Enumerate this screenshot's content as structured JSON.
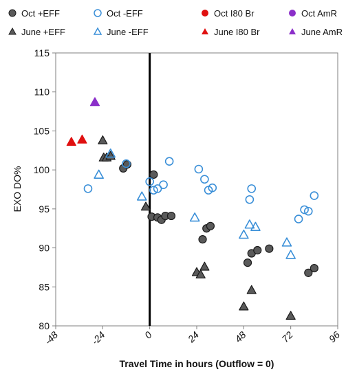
{
  "chart_data": {
    "type": "scatter",
    "title": "",
    "xlabel": "Travel Time in hours (Outflow = 0)",
    "ylabel": "EXO DO%",
    "xlim": [
      -48,
      96
    ],
    "ylim": [
      80,
      115
    ],
    "xticks": [
      -48,
      -24,
      0,
      24,
      48,
      72,
      96
    ],
    "yticks": [
      80,
      85,
      90,
      95,
      100,
      105,
      110,
      115
    ],
    "xtick_labels": [
      "-48",
      "-24",
      "0",
      "24",
      "48",
      "72",
      "96"
    ],
    "ytick_labels": [
      "80",
      "85",
      "90",
      "95",
      "100",
      "105",
      "110",
      "115"
    ],
    "grid": false,
    "vertical_reference_line_x": 0,
    "legend": {
      "placement": "top",
      "entries": [
        {
          "label": "Oct +EFF",
          "series": 0
        },
        {
          "label": "Oct -EFF",
          "series": 1
        },
        {
          "label": "Oct I80 Br",
          "series": 2
        },
        {
          "label": "Oct AmR",
          "series": 3
        },
        {
          "label": "June +EFF",
          "series": 4
        },
        {
          "label": "June -EFF",
          "series": 5
        },
        {
          "label": "June I80 Br",
          "series": 6
        },
        {
          "label": "June AmR",
          "series": 7
        }
      ]
    },
    "series": [
      {
        "name": "Oct +EFF",
        "marker": "circle",
        "fill": "#5a5a5a",
        "stroke": "#1a1a1a",
        "points": [
          [
            -13.5,
            100.2
          ],
          [
            -11.5,
            100.7
          ],
          [
            2,
            99.4
          ],
          [
            1,
            94.0
          ],
          [
            4,
            93.9
          ],
          [
            6,
            93.6
          ],
          [
            8,
            94.1
          ],
          [
            11,
            94.1
          ],
          [
            27,
            91.1
          ],
          [
            29,
            92.5
          ],
          [
            31,
            92.8
          ],
          [
            50,
            88.1
          ],
          [
            52,
            89.3
          ],
          [
            55,
            89.7
          ],
          [
            61,
            89.9
          ],
          [
            81,
            86.8
          ],
          [
            84,
            87.4
          ]
        ]
      },
      {
        "name": "Oct -EFF",
        "marker": "circle-open",
        "fill": "none",
        "stroke": "#3a8fd8",
        "points": [
          [
            -31.5,
            97.6
          ],
          [
            -12,
            100.8
          ],
          [
            0,
            98.5
          ],
          [
            2,
            97.4
          ],
          [
            4,
            97.6
          ],
          [
            7,
            98.1
          ],
          [
            10,
            101.1
          ],
          [
            25,
            100.1
          ],
          [
            28,
            98.8
          ],
          [
            30,
            97.4
          ],
          [
            32,
            97.7
          ],
          [
            51,
            96.2
          ],
          [
            52,
            97.6
          ],
          [
            76,
            93.7
          ],
          [
            79,
            94.9
          ],
          [
            81,
            94.7
          ],
          [
            84,
            96.7
          ]
        ]
      },
      {
        "name": "Oct I80 Br",
        "marker": "circle",
        "fill": "#e01010",
        "stroke": "#e01010",
        "points": []
      },
      {
        "name": "Oct AmR",
        "marker": "circle",
        "fill": "#8b2fc9",
        "stroke": "#8b2fc9",
        "points": []
      },
      {
        "name": "June +EFF",
        "marker": "triangle",
        "fill": "#5a5a5a",
        "stroke": "#1a1a1a",
        "points": [
          [
            -24,
            103.8
          ],
          [
            -23.5,
            101.6
          ],
          [
            -22,
            101.6
          ],
          [
            -20,
            101.8
          ],
          [
            -2,
            95.3
          ],
          [
            24,
            86.9
          ],
          [
            26,
            86.6
          ],
          [
            28,
            87.6
          ],
          [
            48,
            82.5
          ],
          [
            52,
            84.6
          ],
          [
            72,
            81.3
          ]
        ]
      },
      {
        "name": "June -EFF",
        "marker": "triangle-open",
        "fill": "none",
        "stroke": "#3a8fd8",
        "points": [
          [
            -26,
            99.4
          ],
          [
            -20,
            102.1
          ],
          [
            -4,
            96.6
          ],
          [
            23,
            93.9
          ],
          [
            48,
            91.7
          ],
          [
            51,
            93.0
          ],
          [
            54,
            92.7
          ],
          [
            70,
            90.7
          ],
          [
            72,
            89.1
          ]
        ]
      },
      {
        "name": "June I80 Br",
        "marker": "triangle",
        "fill": "#e01010",
        "stroke": "#e01010",
        "points": [
          [
            -40,
            103.6
          ],
          [
            -34.5,
            103.9
          ]
        ]
      },
      {
        "name": "June AmR",
        "marker": "triangle",
        "fill": "#8b2fc9",
        "stroke": "#8b2fc9",
        "points": [
          [
            -28,
            108.7
          ]
        ]
      }
    ]
  }
}
